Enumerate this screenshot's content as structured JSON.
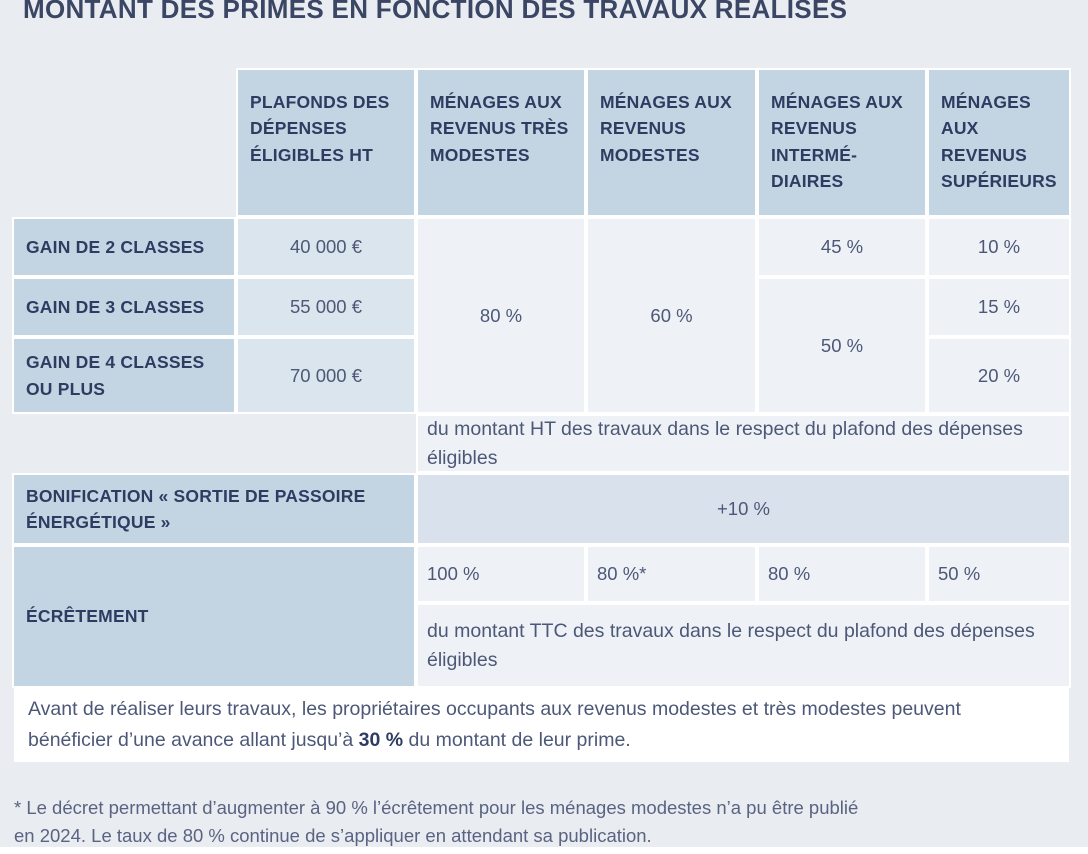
{
  "title": "MONTANT DES PRIMES EN FONCTION DES TRAVAUX RÉALISÉS",
  "table": {
    "column_headers": [
      "PLAFONDS DES DÉPENSES ÉLIGIBLES HT",
      "MÉNAGES AUX REVENUS TRÈS MODESTES",
      "MÉNAGES AUX REVENUS MODESTES",
      "MÉNAGES AUX REVENUS INTERMÉ-DIAIRES",
      "MÉNAGES AUX REVENUS SUPÉRIEURS"
    ],
    "gain_rows": [
      {
        "label": "GAIN DE 2 CLASSES",
        "plafond": "40 000 €"
      },
      {
        "label": "GAIN DE 3 CLASSES",
        "plafond": "55 000 €"
      },
      {
        "label": "GAIN DE 4 CLASSES OU PLUS",
        "plafond": "70 000 €"
      }
    ],
    "rates": {
      "tres_modestes": "80 %",
      "modestes": "60 %",
      "intermediaires_gain2": "45 %",
      "intermediaires_gain3_4": "50 %",
      "superieurs_gain2": "10 %",
      "superieurs_gain3": "15 %",
      "superieurs_gain4": "20 %"
    },
    "ht_note": "du montant HT des travaux dans le respect du plafond des dépenses éligibles",
    "bonification": {
      "label": "BONIFICATION « SORTIE DE PASSOIRE ÉNERGÉTIQUE »",
      "value": "+10 %"
    },
    "ecretement": {
      "label": "ÉCRÊTEMENT",
      "tres_modestes": "100 %",
      "modestes": "80 %*",
      "intermediaires": "80 %",
      "superieurs": "50 %",
      "note": "du montant TTC des travaux dans le respect du plafond des dépenses éligibles"
    }
  },
  "advance_note": {
    "before_bold": "Avant de réaliser leurs travaux, les propriétaires occupants aux revenus modestes et très modestes peuvent bénéficier d’une avance allant jusqu’à ",
    "bold": "30 %",
    "after_bold": " du montant de leur prime."
  },
  "footnote": {
    "line1": "* Le décret permettant d’augmenter à 90 % l’écrêtement pour les ménages modestes n’a pu être publié",
    "line2": "en 2024. Le taux de 80 % continue de s’appliquer en attendant sa publication."
  }
}
